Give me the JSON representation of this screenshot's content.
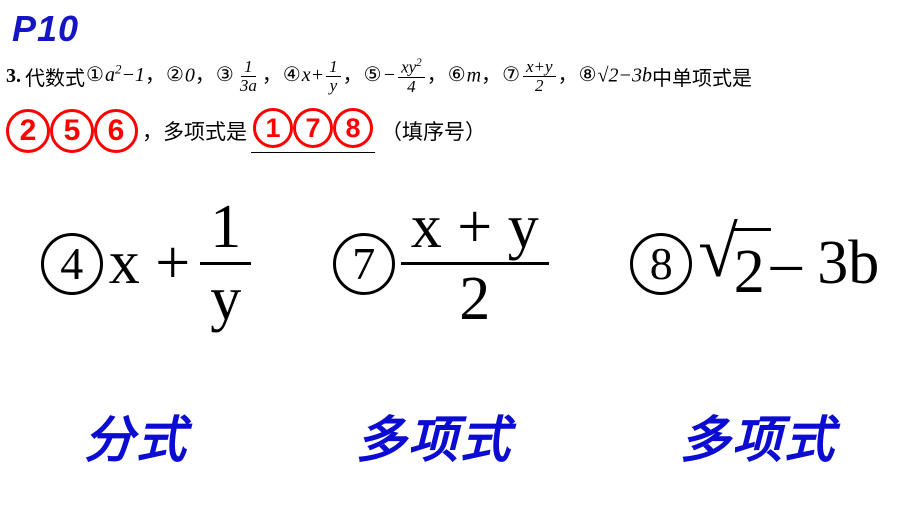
{
  "page_ref": "P10",
  "question": {
    "number": "3.",
    "intro": "代数式",
    "items": [
      {
        "marker": "①",
        "expr_html": "a<span class='sup'>2</span>−1"
      },
      {
        "marker": "②",
        "expr_html": "0"
      },
      {
        "marker": "③",
        "expr_html": "<span class='frac'><span class='num'>1</span><span class='den'>3<i>a</i></span></span>"
      },
      {
        "marker": "④",
        "expr_html": "x+<span class='frac'><span class='num'>1</span><span class='den'>y</span></span>"
      },
      {
        "marker": "⑤",
        "expr_html": "−<span class='frac'><span class='num'>xy<span class=\"sup\">2</span></span><span class='den'>4</span></span>"
      },
      {
        "marker": "⑥",
        "expr_html": "m"
      },
      {
        "marker": "⑦",
        "expr_html": "<span class='frac'><span class='num'>x+y</span><span class='den'>2</span></span>"
      },
      {
        "marker": "⑧",
        "expr_html": "√2−3b"
      }
    ],
    "tail_text": "中单项式是"
  },
  "answers": {
    "monomial": [
      "2",
      "5",
      "6"
    ],
    "between_text": "，多项式是",
    "polynomial": [
      "1",
      "7",
      "8"
    ],
    "suffix": "（填序号）"
  },
  "big_exprs": {
    "e4": {
      "circle": "4",
      "prefix": "x +",
      "frac_num": "1",
      "frac_den": "y"
    },
    "e7": {
      "circle": "7",
      "frac_num": "x + y",
      "frac_den": "2"
    },
    "e8": {
      "circle": "8",
      "radicand": "2",
      "rest": " – 3b"
    }
  },
  "labels": {
    "l4": "分式",
    "l7": "多项式",
    "l8": "多项式"
  },
  "colors": {
    "heading_blue": "#1515c5",
    "answer_red": "#ff0000",
    "label_blue": "#0b0bd2"
  }
}
